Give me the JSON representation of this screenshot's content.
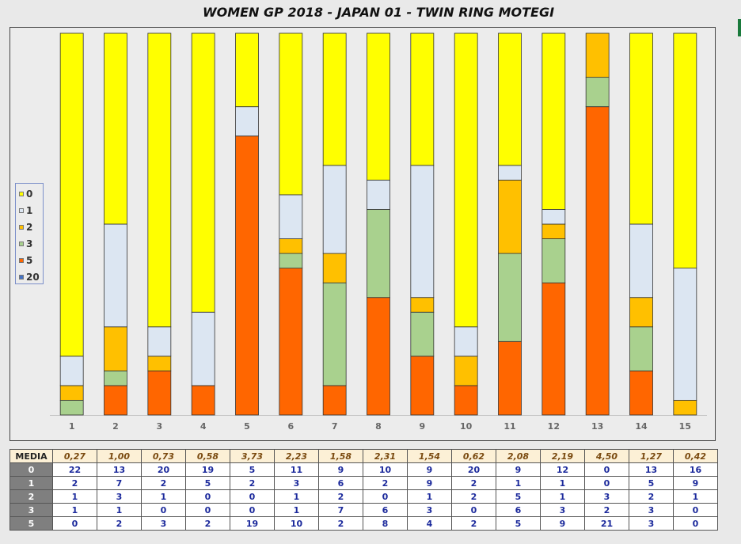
{
  "chart_data": {
    "type": "bar",
    "stacked": true,
    "percent": true,
    "title": "WOMEN GP 2018 - JAPAN 01 - TWIN RING MOTEGI",
    "categories": [
      "1",
      "2",
      "3",
      "4",
      "5",
      "6",
      "7",
      "8",
      "9",
      "10",
      "11",
      "12",
      "13",
      "14",
      "15"
    ],
    "series": [
      {
        "name": "5",
        "color": "#ff6600",
        "values": [
          0,
          2,
          3,
          2,
          19,
          10,
          2,
          8,
          4,
          2,
          5,
          9,
          21,
          3,
          0
        ]
      },
      {
        "name": "3",
        "color": "#a9d18e",
        "values": [
          1,
          1,
          0,
          0,
          0,
          1,
          7,
          6,
          3,
          0,
          6,
          3,
          2,
          3,
          0
        ]
      },
      {
        "name": "2",
        "color": "#ffc000",
        "values": [
          1,
          3,
          1,
          0,
          0,
          1,
          2,
          0,
          1,
          2,
          5,
          1,
          3,
          2,
          1
        ]
      },
      {
        "name": "1",
        "color": "#dce6f2",
        "values": [
          2,
          7,
          2,
          5,
          2,
          3,
          6,
          2,
          9,
          2,
          1,
          1,
          0,
          5,
          9
        ]
      },
      {
        "name": "0",
        "color": "#ffff00",
        "values": [
          22,
          13,
          20,
          19,
          5,
          11,
          9,
          10,
          9,
          20,
          9,
          12,
          0,
          13,
          16
        ]
      }
    ],
    "legend": {
      "position": "left",
      "entries": [
        {
          "label": "0",
          "color": "#ffff00"
        },
        {
          "label": "1",
          "color": "#dce6f2"
        },
        {
          "label": "2",
          "color": "#ffc000"
        },
        {
          "label": "3",
          "color": "#a9d18e"
        },
        {
          "label": "5",
          "color": "#ff6600"
        },
        {
          "label": "20",
          "color": "#4472c4"
        }
      ]
    }
  },
  "table": {
    "media_label": "MEDIA",
    "media": [
      "0,27",
      "1,00",
      "0,73",
      "0,58",
      "3,73",
      "2,23",
      "1,58",
      "2,31",
      "1,54",
      "0,62",
      "2,08",
      "2,19",
      "4,50",
      "1,27",
      "0,42"
    ],
    "rows": [
      {
        "label": "0",
        "values": [
          "22",
          "13",
          "20",
          "19",
          "5",
          "11",
          "9",
          "10",
          "9",
          "20",
          "9",
          "12",
          "0",
          "13",
          "16"
        ]
      },
      {
        "label": "1",
        "values": [
          "2",
          "7",
          "2",
          "5",
          "2",
          "3",
          "6",
          "2",
          "9",
          "2",
          "1",
          "1",
          "0",
          "5",
          "9"
        ]
      },
      {
        "label": "2",
        "values": [
          "1",
          "3",
          "1",
          "0",
          "0",
          "1",
          "2",
          "0",
          "1",
          "2",
          "5",
          "1",
          "3",
          "2",
          "1"
        ]
      },
      {
        "label": "3",
        "values": [
          "1",
          "1",
          "0",
          "0",
          "0",
          "1",
          "7",
          "6",
          "3",
          "0",
          "6",
          "3",
          "2",
          "3",
          "0"
        ]
      },
      {
        "label": "5",
        "values": [
          "0",
          "2",
          "3",
          "2",
          "19",
          "10",
          "2",
          "8",
          "4",
          "2",
          "5",
          "9",
          "21",
          "3",
          "0"
        ]
      }
    ]
  }
}
